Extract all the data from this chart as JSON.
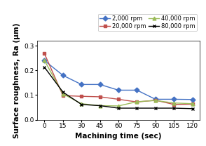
{
  "x": [
    0,
    15,
    30,
    45,
    60,
    75,
    90,
    105,
    120
  ],
  "series_order": [
    "2,000 rpm",
    "20,000 rpm",
    "40,000 rpm",
    "80,000 rpm"
  ],
  "series": {
    "2,000 rpm": [
      0.24,
      0.18,
      0.143,
      0.143,
      0.12,
      0.12,
      0.083,
      0.083,
      0.082
    ],
    "20,000 rpm": [
      0.268,
      0.098,
      0.095,
      0.093,
      0.083,
      0.072,
      0.079,
      0.062,
      0.063
    ],
    "40,000 rpm": [
      0.24,
      0.105,
      0.065,
      0.057,
      0.056,
      0.073,
      0.078,
      0.068,
      0.065
    ],
    "80,000 rpm": [
      0.213,
      0.112,
      0.062,
      0.057,
      0.047,
      0.047,
      0.047,
      0.047,
      0.045
    ]
  },
  "colors": {
    "2,000 rpm": "#4472c4",
    "20,000 rpm": "#c0504d",
    "40,000 rpm": "#9bbb59",
    "80,000 rpm": "#000000"
  },
  "markers": {
    "2,000 rpm": "D",
    "20,000 rpm": "s",
    "40,000 rpm": "^",
    "80,000 rpm": "x"
  },
  "marker_fill": {
    "2,000 rpm": "#4472c4",
    "20,000 rpm": "#c0504d",
    "40,000 rpm": "#9bbb59",
    "80,000 rpm": "#000000"
  },
  "xlabel": "Machining time (sec)",
  "ylabel": "Surface roughness, Ra (μm)",
  "ylim": [
    0,
    0.32
  ],
  "yticks": [
    0,
    0.1,
    0.2,
    0.3
  ],
  "xticks": [
    0,
    15,
    30,
    45,
    60,
    75,
    90,
    105,
    120
  ],
  "axis_fontsize": 7.5,
  "tick_fontsize": 6.5,
  "legend_fontsize": 6.0,
  "linewidth": 1.0,
  "markersize": 3.5
}
